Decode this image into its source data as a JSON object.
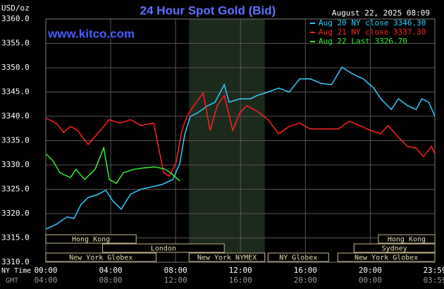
{
  "chart_data": {
    "type": "line",
    "title": "24 Hour Spot Gold (Bid)",
    "timestamp": "August 22, 2025 08:09",
    "y_unit": "USD/oz",
    "watermark": "www.kitco.com",
    "x_label": "NY Time",
    "x2_label": "GMT",
    "xlim": [
      0,
      23.98
    ],
    "xticks": [
      {
        "value": 0,
        "label": "00:00"
      },
      {
        "value": 4,
        "label": "04:00"
      },
      {
        "value": 8,
        "label": "08:00"
      },
      {
        "value": 12,
        "label": "12:00"
      },
      {
        "value": 16,
        "label": "16:00"
      },
      {
        "value": 20,
        "label": "20:00"
      },
      {
        "value": 23.98,
        "label": "23:59"
      }
    ],
    "gmt_labels": [
      "04:00",
      "08:00",
      "12:00",
      "16:00",
      "20:00",
      "00:00",
      "03:59"
    ],
    "ylim": [
      3310,
      3360
    ],
    "yticks": [
      {
        "value": 3310,
        "label": "3310.0"
      },
      {
        "value": 3315,
        "label": "3315.0"
      },
      {
        "value": 3320,
        "label": "3320.0"
      },
      {
        "value": 3325,
        "label": "3325.0"
      },
      {
        "value": 3330,
        "label": "3330.0"
      },
      {
        "value": 3335,
        "label": "3335.0"
      },
      {
        "value": 3340,
        "label": "3340.0"
      },
      {
        "value": 3345,
        "label": "3345.0"
      },
      {
        "value": 3350,
        "label": "3350.0"
      },
      {
        "value": 3355,
        "label": "3355.0"
      },
      {
        "value": 3360,
        "label": "3360.0"
      }
    ],
    "grid": true,
    "series": [
      {
        "name": "Aug 20 NY close 3346.30",
        "color": "#33ccff",
        "x": [
          0,
          0.65,
          1.3,
          1.74,
          2.17,
          2.61,
          3.26,
          3.7,
          4.13,
          4.65,
          5.22,
          5.87,
          6.52,
          7.17,
          7.83,
          8.26,
          8.57,
          8.91,
          9.35,
          10.0,
          10.43,
          11.0,
          11.3,
          11.96,
          12.61,
          13.04,
          13.7,
          14.35,
          15.0,
          15.65,
          16.3,
          16.96,
          17.61,
          18.26,
          18.91,
          19.57,
          20.22,
          20.65,
          21.3,
          21.74,
          22.3,
          22.83,
          23.17,
          23.61,
          23.98
        ],
        "values": [
          3316.8,
          3317.8,
          3319.3,
          3319.0,
          3321.9,
          3323.3,
          3324.0,
          3324.8,
          3322.6,
          3320.9,
          3324.0,
          3325.0,
          3325.5,
          3326.0,
          3327.0,
          3330.3,
          3336.4,
          3340.0,
          3340.7,
          3342.2,
          3342.9,
          3346.5,
          3342.9,
          3343.6,
          3343.6,
          3344.3,
          3345.0,
          3345.8,
          3345.0,
          3347.7,
          3347.7,
          3346.8,
          3346.5,
          3350.1,
          3348.7,
          3347.7,
          3345.8,
          3343.6,
          3341.4,
          3343.6,
          3342.2,
          3341.4,
          3343.6,
          3342.9,
          3340.0
        ]
      },
      {
        "name": "Aug 21 NY close 3337.30",
        "color": "#ff2020",
        "x": [
          0,
          0.65,
          1.09,
          1.52,
          1.96,
          2.61,
          3.26,
          3.91,
          4.57,
          5.22,
          5.87,
          6.65,
          6.96,
          7.26,
          7.61,
          8.04,
          8.39,
          8.7,
          9.13,
          9.7,
          10.13,
          10.57,
          11.0,
          11.52,
          11.96,
          12.39,
          13.04,
          13.7,
          14.35,
          15.0,
          15.65,
          16.3,
          17.17,
          18.04,
          18.7,
          19.35,
          20.0,
          20.65,
          21.09,
          21.74,
          22.3,
          22.83,
          23.26,
          23.78,
          23.98
        ],
        "values": [
          3339.6,
          3338.6,
          3336.7,
          3337.9,
          3337.1,
          3334.2,
          3336.7,
          3339.3,
          3338.6,
          3339.3,
          3338.1,
          3338.6,
          3333.5,
          3328.4,
          3327.7,
          3330.6,
          3337.1,
          3340.0,
          3342.2,
          3344.8,
          3337.1,
          3342.2,
          3344.3,
          3337.1,
          3340.7,
          3342.2,
          3341.0,
          3339.3,
          3336.4,
          3337.9,
          3338.6,
          3337.4,
          3337.4,
          3337.4,
          3339.0,
          3338.1,
          3337.1,
          3336.4,
          3338.1,
          3335.7,
          3333.8,
          3333.5,
          3331.7,
          3333.8,
          3332.3
        ]
      },
      {
        "name": "Aug 22 Last 3326.70",
        "color": "#33ee33",
        "x": [
          0,
          0.43,
          0.87,
          1.52,
          1.87,
          2.39,
          3.04,
          3.57,
          3.91,
          4.35,
          4.78,
          5.43,
          6.09,
          6.74,
          7.39,
          7.83,
          8.26
        ],
        "values": [
          3332.3,
          3330.9,
          3328.4,
          3327.4,
          3329.1,
          3327.0,
          3329.1,
          3333.5,
          3327.0,
          3326.2,
          3328.4,
          3329.1,
          3329.4,
          3329.6,
          3329.1,
          3328.0,
          3326.7
        ]
      }
    ],
    "sessions": [
      {
        "name": "Hong Kong",
        "start": 0,
        "end": 5.57
      },
      {
        "name": "London",
        "start": 3.5,
        "end": 11.0
      },
      {
        "name": "New York Globex",
        "start": 0,
        "end": 6.8
      },
      {
        "name": "New York NYMEX",
        "start": 8.83,
        "end": 13.5
      },
      {
        "name": "NY Globex",
        "start": 13.7,
        "end": 17.43
      },
      {
        "name": "Hong Kong",
        "start": 20.5,
        "end": 23.98
      },
      {
        "name": "Sydney",
        "start": 19.0,
        "end": 23.98
      },
      {
        "name": "New York Globex",
        "start": 18.0,
        "end": 23.98
      }
    ]
  }
}
